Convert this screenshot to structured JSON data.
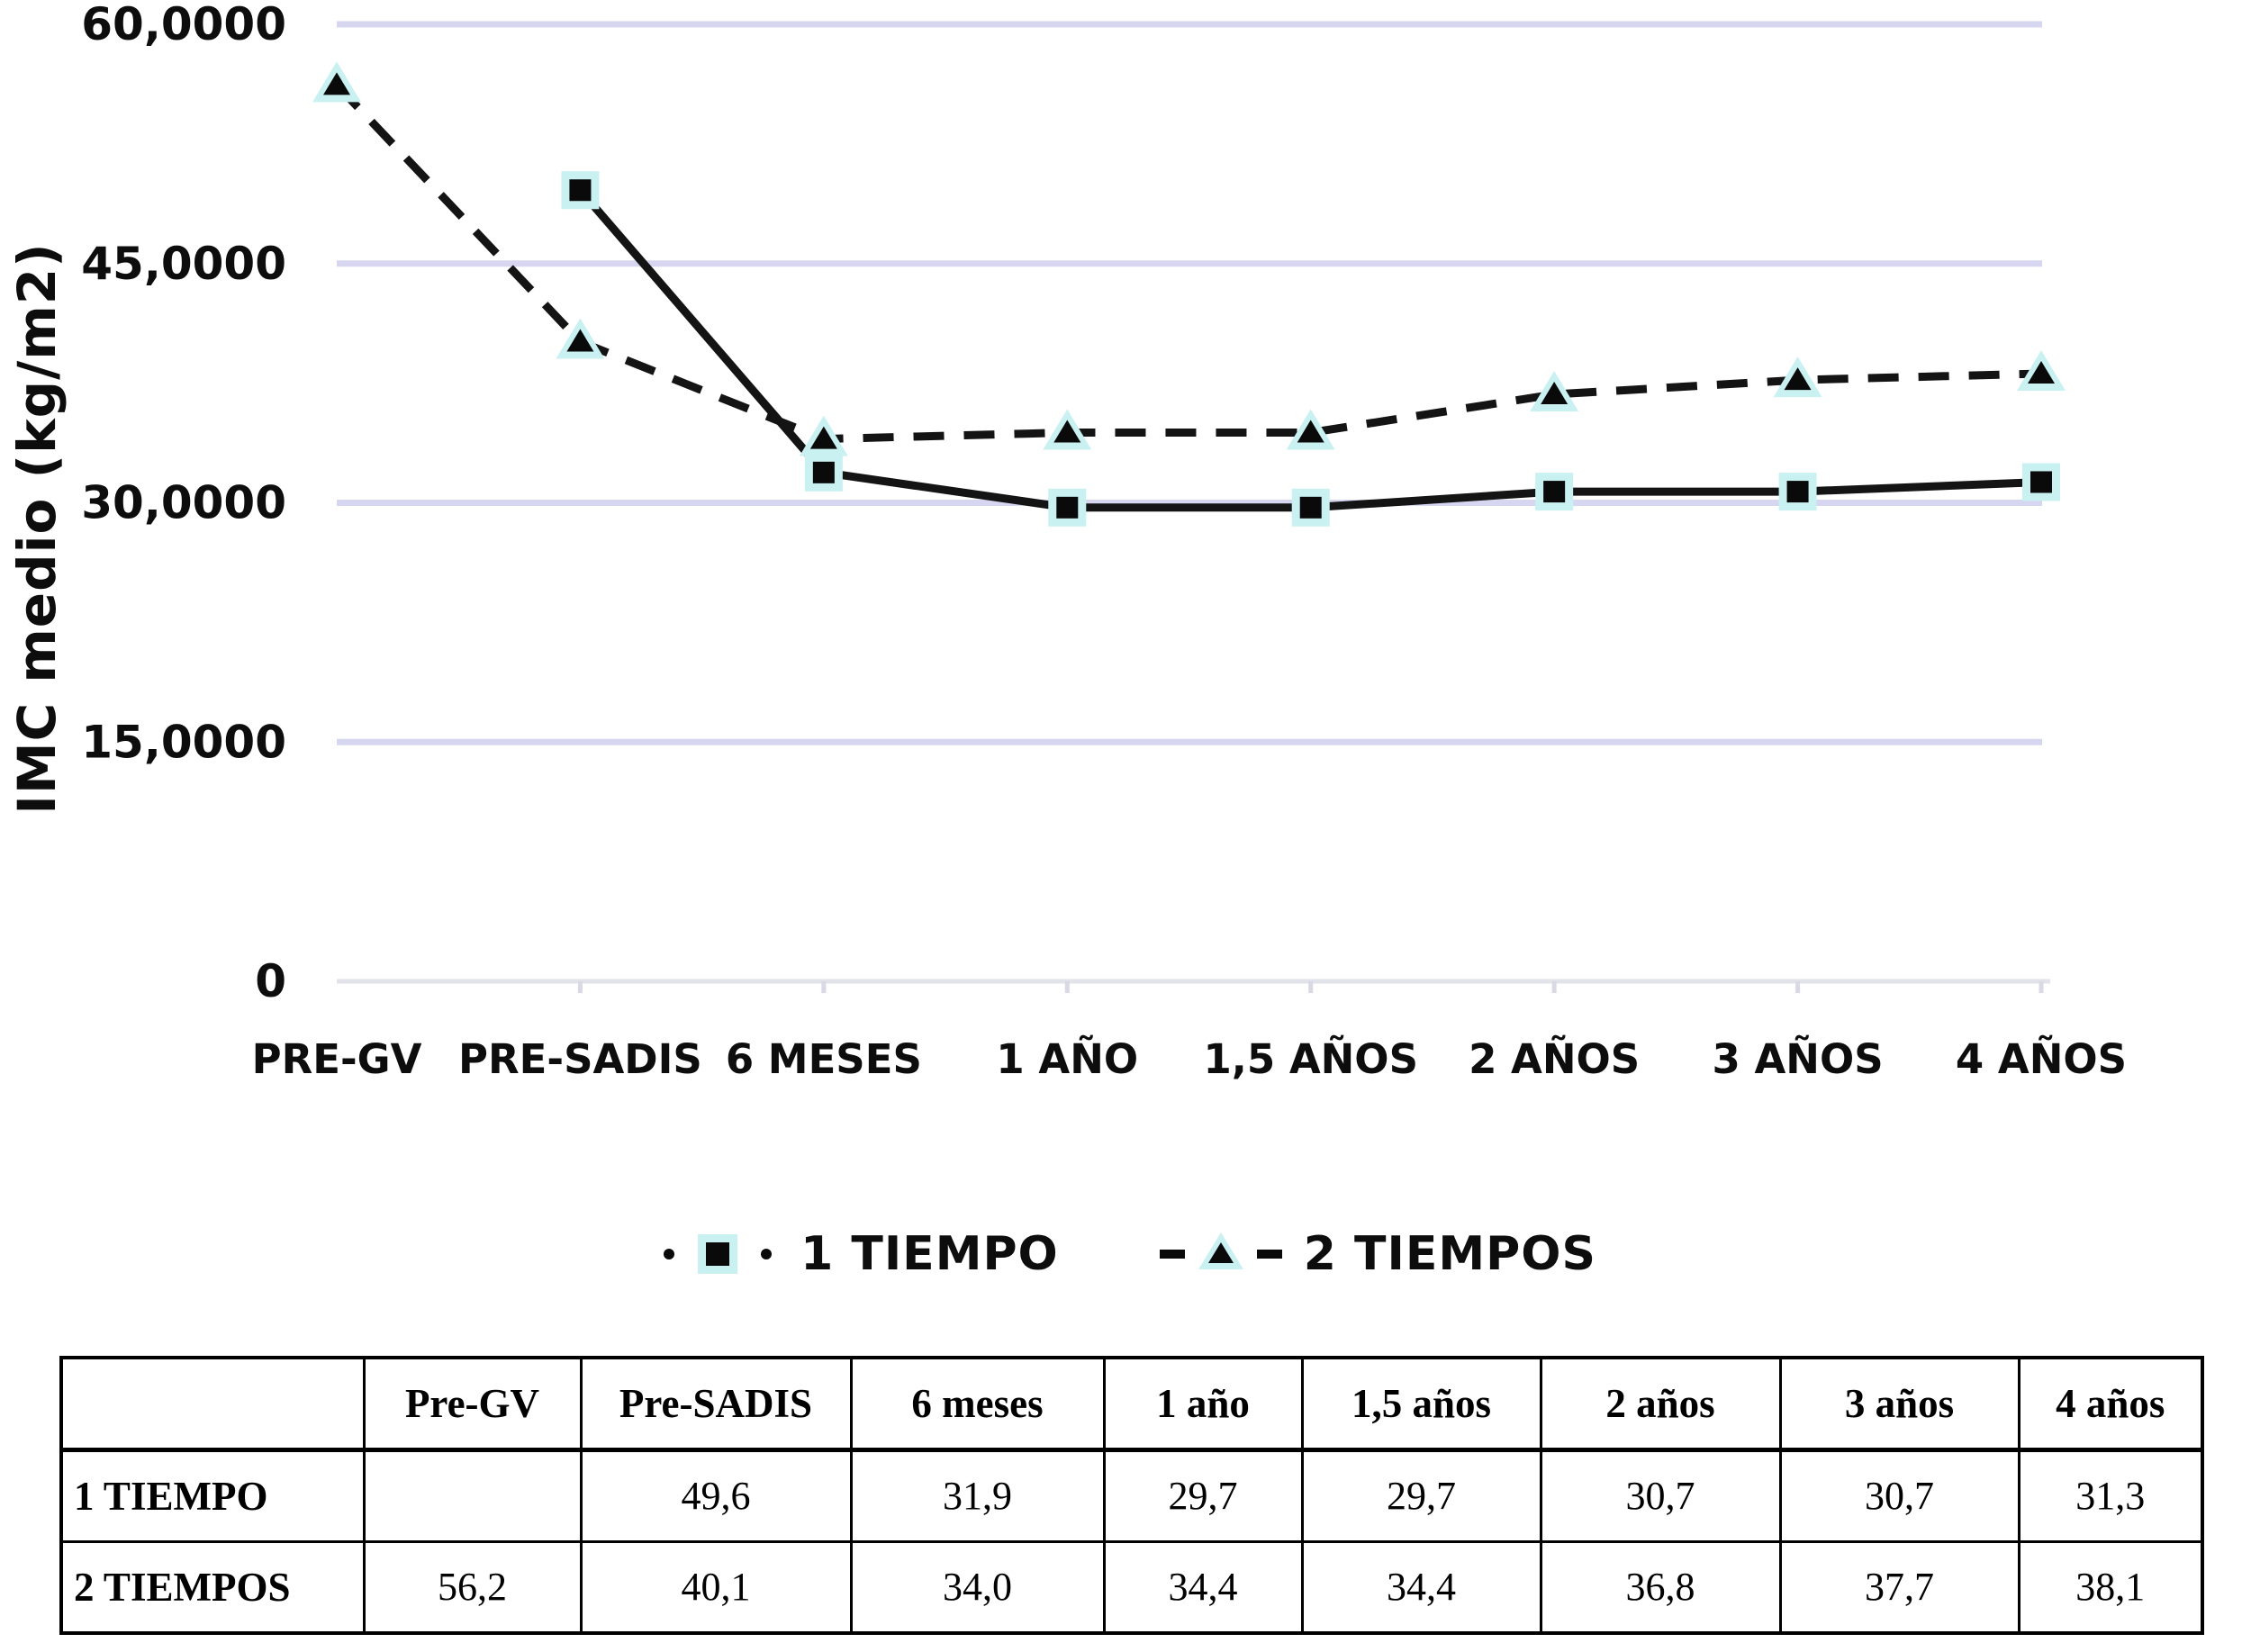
{
  "chart_data": {
    "type": "line",
    "title": "",
    "y_axis_label": "IMC medio (kg/m2)",
    "x_axis_label": "",
    "ylim": [
      0,
      60
    ],
    "grid": true,
    "gridline_values": [
      15,
      30,
      45,
      60
    ],
    "y_ticks": [
      {
        "value": 60,
        "label": "60,0000"
      },
      {
        "value": 45,
        "label": "45,0000"
      },
      {
        "value": 30,
        "label": "30,0000"
      },
      {
        "value": 15,
        "label": "15,0000"
      },
      {
        "value": 0,
        "label": "0"
      }
    ],
    "categories": [
      "PRE-GV",
      "PRE-SADIS",
      "6 MESES",
      "1 AÑO",
      "1,5 AÑOS",
      "2 AÑOS",
      "3 AÑOS",
      "4 AÑOS"
    ],
    "series": [
      {
        "name": "1 TIEMPO",
        "marker": "square",
        "line_style": "solid",
        "values": [
          null,
          49.6,
          31.9,
          29.7,
          29.7,
          30.7,
          30.7,
          31.3
        ]
      },
      {
        "name": "2 TIEMPOS",
        "marker": "triangle",
        "line_style": "dashed",
        "values": [
          56.2,
          40.1,
          34.0,
          34.4,
          34.4,
          36.8,
          37.7,
          38.1
        ]
      }
    ],
    "legend_position": "bottom-center",
    "colors": {
      "line": "#141414",
      "marker_fill": "#0a0a0a",
      "marker_halo": "#c9f1f2",
      "gridline": "#d6d6f0",
      "axis_line": "#e2e2ea",
      "tick": "#d9d9e6",
      "text": "#0d0d0d"
    }
  },
  "table": {
    "headers": [
      "",
      "Pre-GV",
      "Pre-SADIS",
      "6 meses",
      "1 año",
      "1,5 años",
      "2 años",
      "3 años",
      "4 años"
    ],
    "rows": [
      {
        "label": "1 TIEMPO",
        "values": [
          "",
          "49,6",
          "31,9",
          "29,7",
          "29,7",
          "30,7",
          "30,7",
          "31,3"
        ]
      },
      {
        "label": "2 TIEMPOS",
        "values": [
          "56,2",
          "40,1",
          "34,0",
          "34,4",
          "34,4",
          "36,8",
          "37,7",
          "38,1"
        ]
      }
    ]
  }
}
